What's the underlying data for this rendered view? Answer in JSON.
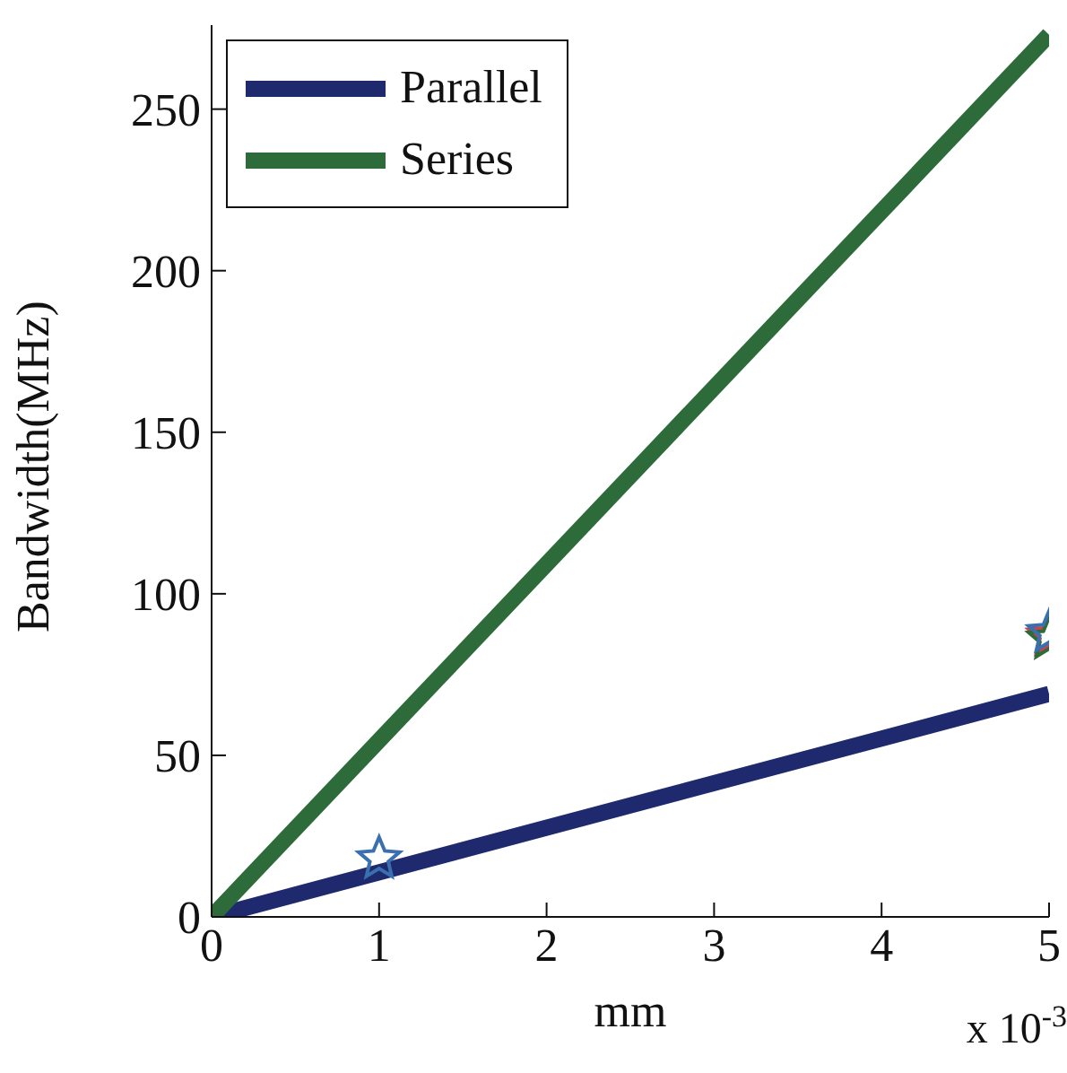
{
  "chart_data": {
    "type": "line",
    "xlabel": "mm",
    "ylabel": "Bandwidth(MHz)",
    "annotations": [
      "x 10$^{-3}$"
    ],
    "xlim": [
      0,
      5
    ],
    "xticks": [
      0,
      1,
      2,
      3,
      4,
      5
    ],
    "ylim": [
      0,
      276
    ],
    "yticks": [
      0,
      50,
      100,
      150,
      200,
      250
    ],
    "legend": "top left",
    "line_style": "solid",
    "series": [
      {
        "name": "Parallel",
        "marker": "none",
        "color": "#1f2a6e",
        "x": [
          0,
          5
        ],
        "values": [
          0,
          69
        ]
      },
      {
        "name": "Series",
        "marker": "none",
        "color": "#2e6b3a",
        "x": [
          0,
          5
        ],
        "values": [
          0,
          273
        ]
      },
      {
        "type": "scatter",
        "marker": "star",
        "color": "#3a6fb0",
        "x": [
          1
        ],
        "values": [
          18
        ]
      },
      {
        "type": "scatter",
        "marker": "star",
        "color": "#d0404a",
        "x": [
          5
        ],
        "values": [
          87
        ]
      },
      {
        "type": "scatter",
        "marker": "star",
        "color": "#2e6b3a",
        "x": [
          5
        ],
        "values": [
          86
        ]
      },
      {
        "type": "scatter",
        "marker": "star",
        "color": "#3a6fb0",
        "x": [
          5
        ],
        "values": [
          88
        ]
      }
    ]
  }
}
